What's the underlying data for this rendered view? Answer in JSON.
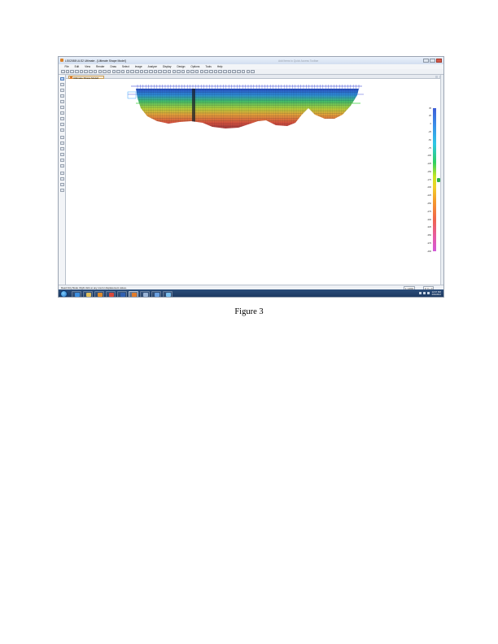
{
  "figure": {
    "caption": "Figure 3"
  },
  "window": {
    "title": "LS02088 ULS2 Ultimate - [Ultimate Shape Model]",
    "search_hint": "Add Items to Quick Access Toolbar"
  },
  "menu": [
    "File",
    "Edit",
    "View",
    "Render",
    "Draw",
    "Select",
    "Image",
    "Analyze",
    "Display",
    "Design",
    "Options",
    "Tools",
    "Help"
  ],
  "tab": {
    "label": "[Ultimate Shape Model]"
  },
  "legend": {
    "labels": [
      "35",
      "20",
      "0",
      "-25",
      "-50",
      "-75",
      "-100",
      "-125",
      "-150",
      "-175",
      "-200",
      "-225",
      "-250",
      "-275",
      "-300",
      "-325",
      "-350",
      "-375",
      "-400"
    ]
  },
  "status": {
    "text": "Read Only Mode. Right click on any row for displacement values.",
    "zoom": "1:1.06%",
    "rotation": "0: 0 + 0"
  },
  "taskbar": {
    "time": "12:07 PM",
    "date": "4/24/2012"
  },
  "icons": {
    "app": "ls-app-icon",
    "start": "windows-start-icon",
    "legend": "color-scale-legend"
  },
  "colors": {
    "model_top": "#2a3fbf",
    "model_mid": "#5fbf3a",
    "model_low": "#e05a3a",
    "taskbar": "#1f3f6a"
  }
}
